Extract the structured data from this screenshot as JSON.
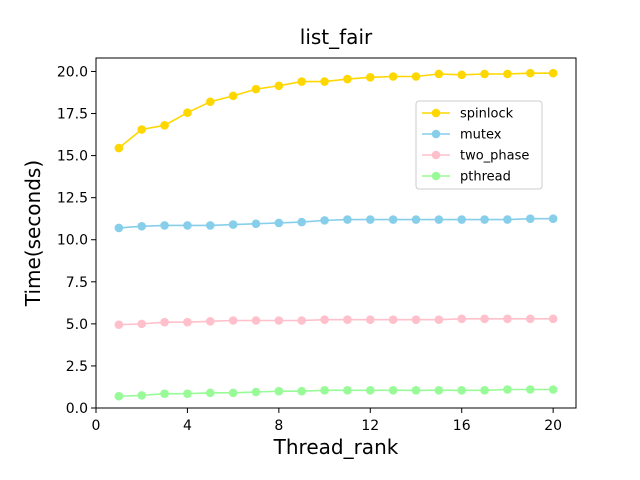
{
  "chart_data": {
    "type": "line",
    "title": "list_fair",
    "xlabel": "Thread_rank",
    "ylabel": "Time(seconds)",
    "xlim": [
      0,
      21
    ],
    "ylim": [
      0,
      20.8
    ],
    "xticks": [
      0,
      4,
      8,
      12,
      16,
      20
    ],
    "yticks": [
      0.0,
      2.5,
      5.0,
      7.5,
      10.0,
      12.5,
      15.0,
      17.5,
      20.0
    ],
    "grid": false,
    "legend_position": "upper-right",
    "x": [
      1,
      2,
      3,
      4,
      5,
      6,
      7,
      8,
      9,
      10,
      11,
      12,
      13,
      14,
      15,
      16,
      17,
      18,
      19,
      20
    ],
    "series": [
      {
        "name": "spinlock",
        "color": "#FFD700",
        "values": [
          15.45,
          16.55,
          16.8,
          17.55,
          18.2,
          18.55,
          18.95,
          19.15,
          19.4,
          19.4,
          19.55,
          19.65,
          19.7,
          19.7,
          19.85,
          19.8,
          19.85,
          19.85,
          19.9,
          19.9
        ]
      },
      {
        "name": "mutex",
        "color": "#87CEEB",
        "values": [
          10.7,
          10.8,
          10.85,
          10.85,
          10.85,
          10.9,
          10.95,
          11.0,
          11.05,
          11.15,
          11.2,
          11.2,
          11.2,
          11.2,
          11.2,
          11.2,
          11.2,
          11.2,
          11.25,
          11.25
        ]
      },
      {
        "name": "two_phase",
        "color": "#FFC0CB",
        "values": [
          4.95,
          5.0,
          5.1,
          5.1,
          5.15,
          5.2,
          5.2,
          5.2,
          5.2,
          5.25,
          5.25,
          5.25,
          5.25,
          5.25,
          5.25,
          5.3,
          5.3,
          5.3,
          5.3,
          5.3
        ]
      },
      {
        "name": "pthread",
        "color": "#98FB98",
        "values": [
          0.7,
          0.75,
          0.85,
          0.85,
          0.9,
          0.9,
          0.95,
          1.0,
          1.0,
          1.05,
          1.05,
          1.05,
          1.05,
          1.05,
          1.05,
          1.05,
          1.05,
          1.1,
          1.1,
          1.1
        ]
      }
    ]
  }
}
